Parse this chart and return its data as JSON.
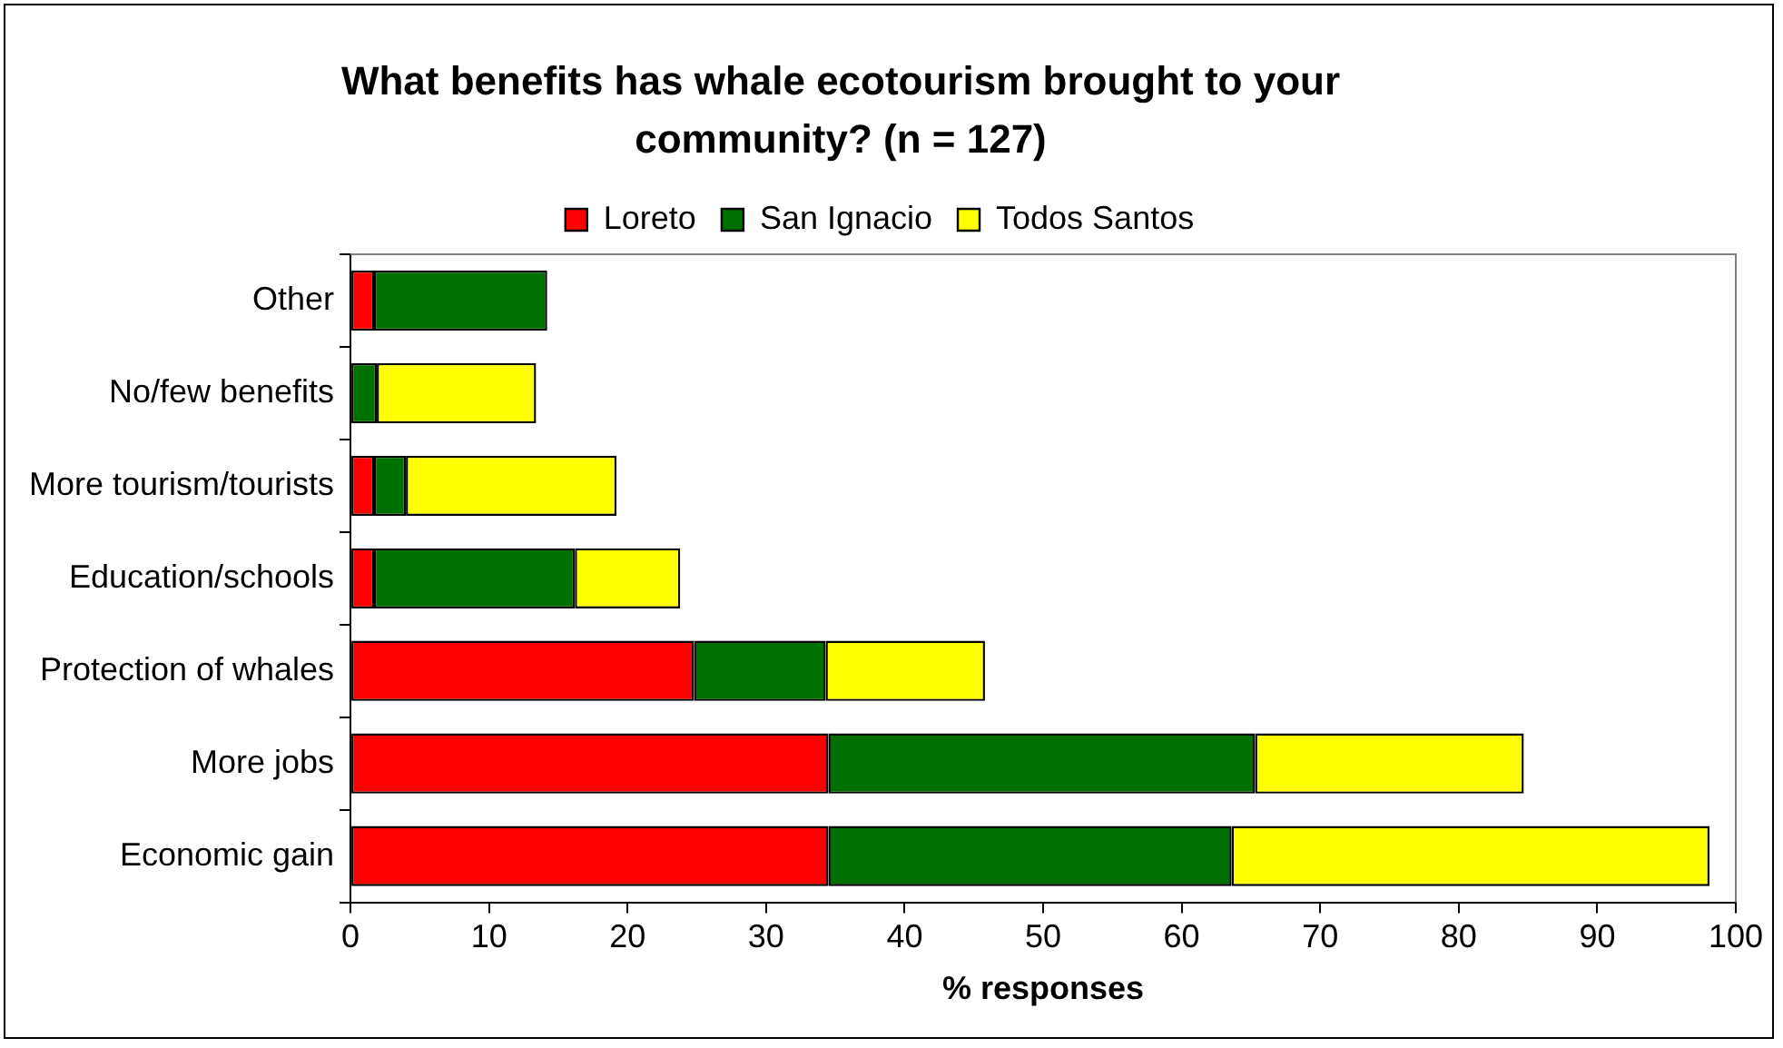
{
  "chart_data": {
    "type": "bar",
    "orientation": "horizontal",
    "stacked": true,
    "title": "What benefits has whale ecotourism brought to your community? (n = 127)",
    "xlabel": "% responses",
    "categories": [
      "Other",
      "No/few benefits",
      "More tourism/tourists",
      "Education/schools",
      "Protection of whales",
      "More jobs",
      "Economic gain"
    ],
    "series": [
      {
        "name": "Loreto",
        "color": "#ff0000",
        "values": [
          1.7,
          null,
          1.7,
          1.7,
          24.8,
          34.5,
          34.5
        ]
      },
      {
        "name": "San Ignacio",
        "color": "#007000",
        "values": [
          12.5,
          1.9,
          2.3,
          14.5,
          9.5,
          30.8,
          29.1
        ]
      },
      {
        "name": "Todos Santos",
        "color": "#ffff00",
        "values": [
          null,
          11.5,
          15.2,
          7.6,
          11.5,
          19.4,
          34.5
        ]
      }
    ],
    "xlim": [
      0,
      100
    ],
    "xticks": [
      0,
      10,
      20,
      30,
      40,
      50,
      60,
      70,
      80,
      90,
      100
    ],
    "grid": false,
    "legend": "top"
  }
}
